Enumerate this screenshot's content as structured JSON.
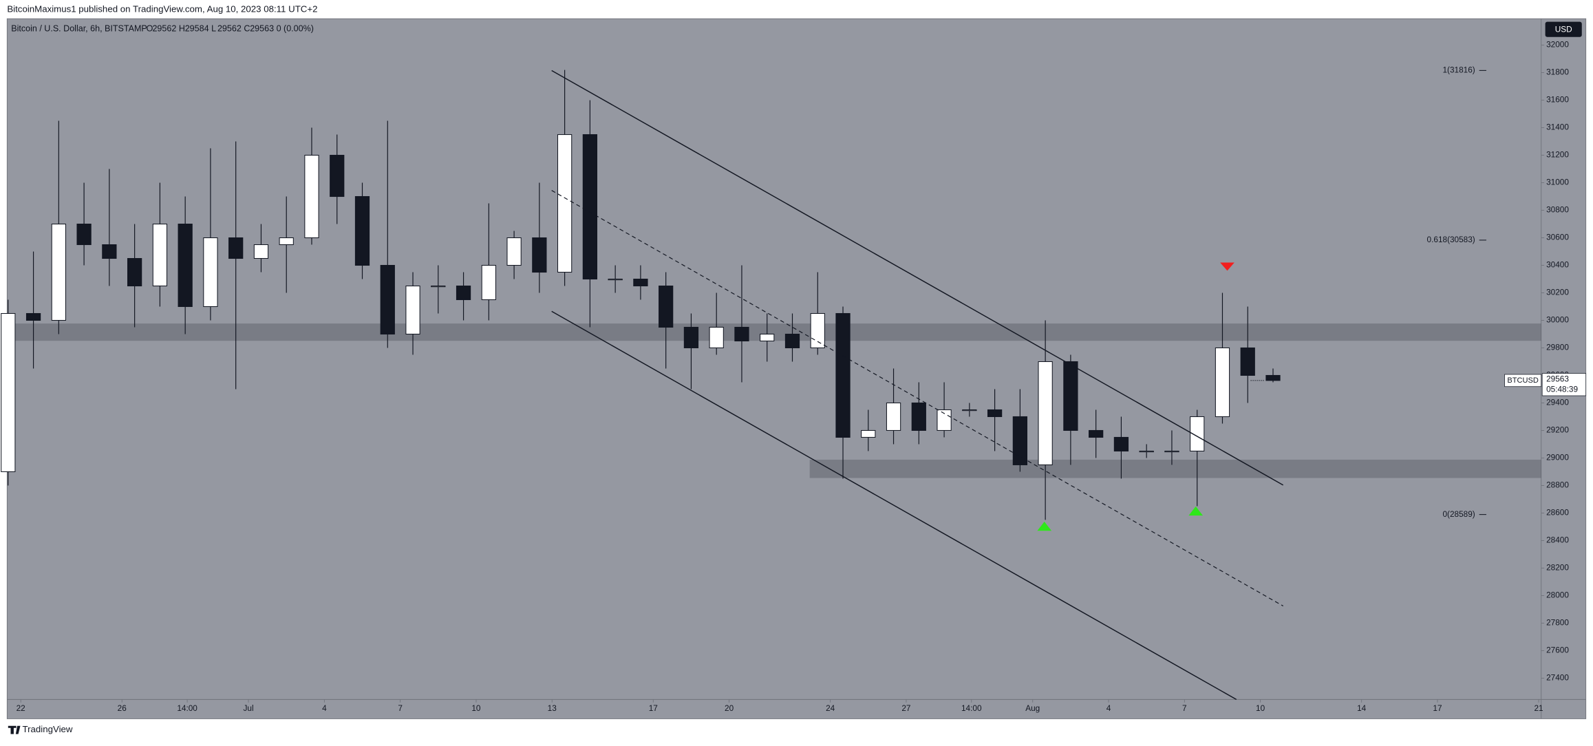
{
  "chart_data": {
    "type": "candlestick",
    "published": "BitcoinMaximus1 published on TradingView.com, Aug 10, 2023 08:11 UTC+2",
    "title": "Bitcoin / U.S. Dollar, 6h, BITSTAMP",
    "ohlc_legend": [
      {
        "label": "O",
        "value": 29562
      },
      {
        "label": "H",
        "value": 29584
      },
      {
        "label": "L",
        "value": 29562
      },
      {
        "label": "C",
        "value": 29563
      }
    ],
    "change": "0 (0.00%)",
    "currency": "USD",
    "symbol": "BTCUSD",
    "last_price": 29563,
    "countdown": "05:48:39",
    "brand": "TradingView",
    "x": [
      -0.5,
      0.5,
      1.5,
      2.5,
      3.5,
      4.5,
      5.5,
      6.5,
      7.5,
      8.5,
      9.5,
      10.5,
      11.5,
      12.5,
      13.5,
      14.5,
      15.5,
      16.5,
      17.5,
      18.5,
      19.5,
      20.5,
      21.5,
      22.5,
      23.5,
      24.5,
      25.5,
      26.5,
      27.5,
      28.5,
      29.5,
      30.5,
      31.5,
      32.5,
      33.5,
      34.5,
      35.5,
      36.5,
      37.5,
      38.5,
      39.5,
      40.5,
      41.5,
      42.5,
      43.5,
      44.5,
      45.5,
      46.5,
      47.5,
      48.5,
      49.5
    ],
    "open": [
      28900,
      30050,
      30000,
      30700,
      30550,
      30450,
      30250,
      30700,
      30100,
      30600,
      30450,
      30550,
      30600,
      31200,
      30900,
      30400,
      29900,
      30250,
      30250,
      30150,
      30400,
      30600,
      30350,
      31350,
      30300,
      30300,
      30250,
      29950,
      29800,
      29950,
      29850,
      29900,
      29800,
      30050,
      29150,
      29200,
      29400,
      29200,
      29350,
      29350,
      29300,
      28950,
      29700,
      29200,
      29150,
      29050,
      29050,
      29050,
      29300,
      29800,
      29600
    ],
    "high": [
      30150,
      30500,
      31450,
      31000,
      31100,
      30700,
      31000,
      30900,
      31250,
      31300,
      30700,
      30900,
      31400,
      31350,
      31000,
      31450,
      30350,
      30400,
      30350,
      30850,
      30650,
      31000,
      31820,
      31600,
      30400,
      30400,
      30350,
      30050,
      30200,
      30400,
      30050,
      30050,
      30350,
      30100,
      29350,
      29650,
      29550,
      29550,
      29400,
      29500,
      29500,
      30000,
      29750,
      29350,
      29300,
      29100,
      29200,
      29350,
      30200,
      30100,
      29650
    ],
    "low": [
      28800,
      29650,
      29900,
      30400,
      30250,
      29950,
      30100,
      29900,
      30000,
      29500,
      30350,
      30200,
      30550,
      30700,
      30300,
      29800,
      29750,
      30050,
      30000,
      30000,
      30300,
      30200,
      30250,
      29950,
      30200,
      30150,
      29650,
      29500,
      29750,
      29550,
      29700,
      29700,
      29750,
      28850,
      29050,
      29100,
      29100,
      29150,
      29300,
      29050,
      28900,
      28550,
      28950,
      29000,
      28850,
      29000,
      28950,
      28650,
      29250,
      29400,
      29550
    ],
    "close": [
      30050,
      30000,
      30700,
      30550,
      30450,
      30250,
      30700,
      30100,
      30600,
      30450,
      30550,
      30600,
      31200,
      30900,
      30400,
      29900,
      30250,
      30250,
      30150,
      30400,
      30600,
      30350,
      31350,
      30300,
      30300,
      30250,
      29950,
      29800,
      29950,
      29850,
      29900,
      29800,
      30050,
      29150,
      29200,
      29400,
      29200,
      29350,
      29350,
      29300,
      28950,
      29700,
      29200,
      29150,
      29050,
      29050,
      29050,
      29300,
      29800,
      29600,
      29563
    ],
    "up_color": "#ffffff",
    "down_color": "#131722",
    "xlim": [
      -0.5,
      60.1
    ],
    "ylim": [
      27245,
      32192
    ],
    "xticks": [
      {
        "value": 0,
        "label": "22"
      },
      {
        "value": 4,
        "label": "26"
      },
      {
        "value": 6.58,
        "label": "14:00"
      },
      {
        "value": 9,
        "label": "Jul"
      },
      {
        "value": 12,
        "label": "4"
      },
      {
        "value": 15,
        "label": "7"
      },
      {
        "value": 18,
        "label": "10"
      },
      {
        "value": 21,
        "label": "13"
      },
      {
        "value": 25,
        "label": "17"
      },
      {
        "value": 28,
        "label": "20"
      },
      {
        "value": 32,
        "label": "24"
      },
      {
        "value": 35,
        "label": "27"
      },
      {
        "value": 37.58,
        "label": "14:00"
      },
      {
        "value": 40,
        "label": "Aug"
      },
      {
        "value": 43,
        "label": "4"
      },
      {
        "value": 46,
        "label": "7"
      },
      {
        "value": 49,
        "label": "10"
      },
      {
        "value": 53,
        "label": "14"
      },
      {
        "value": 56,
        "label": "17"
      },
      {
        "value": 60,
        "label": "21"
      }
    ],
    "yticks": [
      27400,
      27600,
      27800,
      28000,
      28200,
      28400,
      28600,
      28800,
      29000,
      29200,
      29400,
      29600,
      29800,
      30000,
      30200,
      30400,
      30600,
      30800,
      31000,
      31200,
      31400,
      31600,
      31800,
      32000
    ],
    "fib_levels": [
      {
        "value": 31816,
        "label": "1(31816)"
      },
      {
        "value": 30583,
        "label": "0.618(30583)"
      },
      {
        "value": 28589,
        "label": "0(28589)"
      }
    ]
  }
}
